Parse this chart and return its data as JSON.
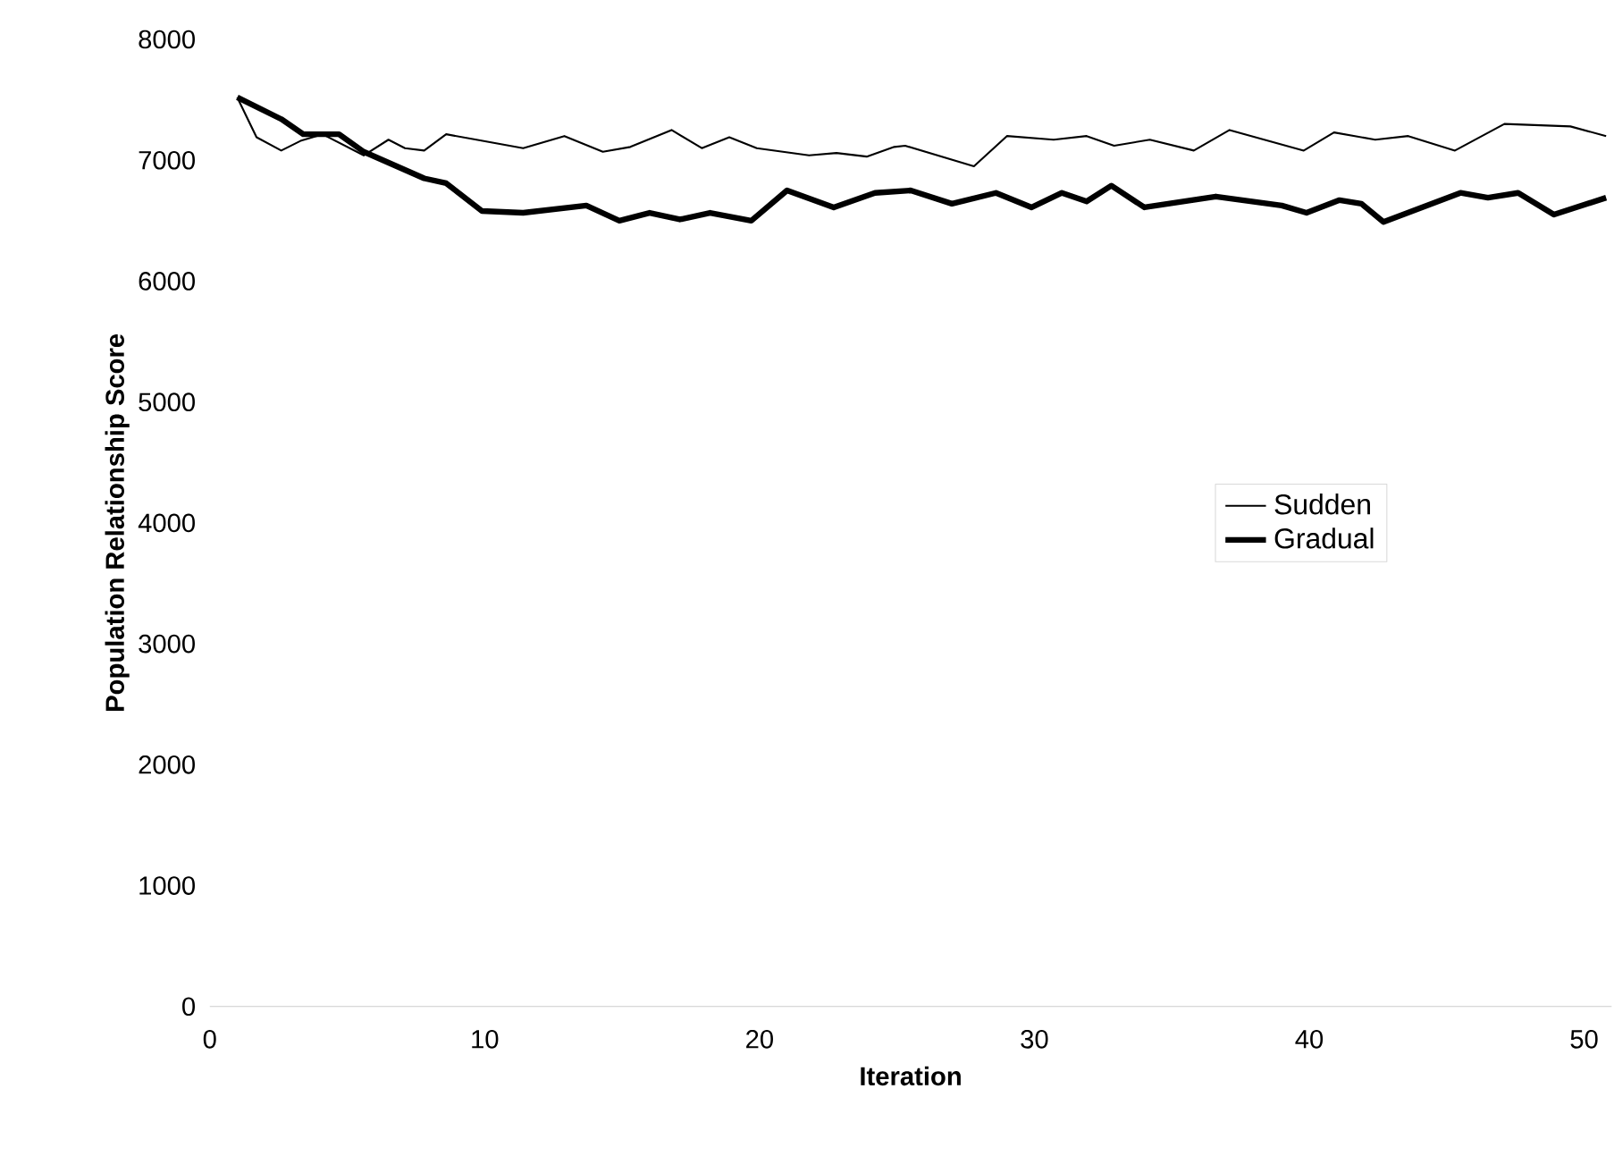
{
  "chart_data": {
    "type": "line",
    "xlabel": "Iteration",
    "ylabel": "Population Relationship Score",
    "xlim": [
      0,
      51
    ],
    "ylim": [
      0,
      8000
    ],
    "xticks": [
      0,
      10,
      20,
      30,
      40,
      50
    ],
    "yticks": [
      0,
      1000,
      2000,
      3000,
      4000,
      5000,
      6000,
      7000,
      8000
    ],
    "grid": false,
    "legend": "right",
    "marker": "none",
    "line_style": "solid",
    "series": [
      {
        "name": "Sudden",
        "color": "#000000",
        "x": [
          1,
          1.7,
          2.6,
          3.3,
          4.1,
          5.6,
          6.5,
          7.1,
          7.8,
          8.6,
          9.7,
          11.4,
          12.9,
          14.3,
          15.3,
          16.8,
          17.9,
          18.9,
          19.9,
          21.8,
          22.8,
          23.9,
          24.9,
          25.3,
          27.8,
          29,
          30.7,
          31.9,
          32.9,
          34.2,
          35.8,
          37.1,
          39.8,
          40.9,
          42.4,
          43.6,
          45.3,
          47.1,
          49.5,
          50.8
        ],
        "values": [
          7520,
          7190,
          7080,
          7160,
          7215,
          7040,
          7170,
          7100,
          7080,
          7215,
          7170,
          7100,
          7200,
          7070,
          7110,
          7250,
          7100,
          7190,
          7100,
          7040,
          7060,
          7030,
          7110,
          7120,
          6950,
          7200,
          7170,
          7200,
          7120,
          7170,
          7080,
          7250,
          7080,
          7230,
          7170,
          7200,
          7080,
          7300,
          7280,
          7200
        ]
      },
      {
        "name": "Gradual",
        "color": "#000000",
        "x": [
          1,
          2.6,
          3.4,
          4.7,
          5.6,
          7.8,
          8.6,
          9.9,
          11.4,
          13.7,
          14.9,
          16,
          17.1,
          18.2,
          19.7,
          21,
          22.7,
          24.2,
          25.5,
          27,
          28.6,
          29.9,
          31,
          31.9,
          32.8,
          34,
          36.6,
          39,
          39.9,
          41.1,
          41.9,
          42.7,
          45.5,
          46.5,
          47.6,
          48.9,
          50.8
        ],
        "values": [
          7520,
          7340,
          7215,
          7215,
          7070,
          6850,
          6810,
          6580,
          6565,
          6625,
          6500,
          6565,
          6510,
          6565,
          6500,
          6750,
          6610,
          6730,
          6750,
          6640,
          6730,
          6610,
          6730,
          6660,
          6790,
          6610,
          6700,
          6625,
          6565,
          6670,
          6640,
          6490,
          6730,
          6690,
          6730,
          6550,
          6690
        ]
      }
    ]
  }
}
